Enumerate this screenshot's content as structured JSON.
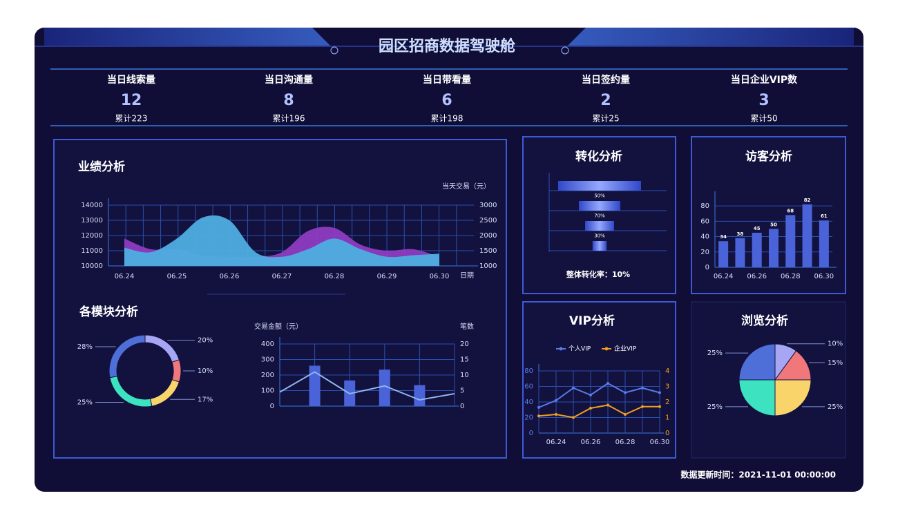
{
  "header": {
    "title": "园区招商数据驾驶舱"
  },
  "kpis": [
    {
      "label": "当日线索量",
      "value": 12,
      "total": "累计223"
    },
    {
      "label": "当日沟通量",
      "value": 8,
      "total": "累计196"
    },
    {
      "label": "当日带看量",
      "value": 6,
      "total": "累计198"
    },
    {
      "label": "当日签约量",
      "value": 2,
      "total": "累计25"
    },
    {
      "label": "当日企业VIP数",
      "value": 3,
      "total": "累计50"
    }
  ],
  "update_time": "数据更新时间：2021-11-01  00:00:00",
  "chart_data": [
    {
      "type": "area",
      "title": "业绩分析",
      "y2_label": "当天交易（元）",
      "x_label": "日期",
      "categories": [
        "06.24",
        null,
        "06.25",
        null,
        "06.26",
        null,
        "06.27",
        null,
        "06.28",
        null,
        "06.29",
        null,
        "06.30"
      ],
      "ylim": [
        10000,
        14000
      ],
      "yticks": [
        10000,
        11000,
        12000,
        13000,
        14000
      ],
      "y2lim": [
        1000,
        3000
      ],
      "y2ticks": [
        1000,
        1500,
        2000,
        2500,
        3000
      ],
      "grid": true,
      "series": [
        {
          "color": "#8e3cc0",
          "axis": "y2",
          "values": [
            1900,
            1550,
            1550,
            1350,
            1300,
            1300,
            1450,
            2150,
            2250,
            1700,
            1500,
            1550,
            1300
          ]
        },
        {
          "color": "#4eaee0",
          "values": [
            11200,
            10900,
            11800,
            13200,
            13000,
            10900,
            10600,
            11100,
            11800,
            11100,
            10600,
            10700,
            10800
          ]
        }
      ]
    },
    {
      "type": "donut",
      "title": "各模块分析",
      "values": [
        20,
        10,
        17,
        25,
        28
      ],
      "value_labels": [
        "20%",
        "10%",
        "17%",
        "25%",
        "28%"
      ],
      "colors": [
        "#a7a6f5",
        "#f0777a",
        "#f9d46b",
        "#3de3c0",
        "#4f6fd8"
      ]
    },
    {
      "type": "combo",
      "y_label": "交易金额（元）",
      "y2_label": "笔数",
      "categories": [
        null,
        null,
        null,
        null,
        null,
        null
      ],
      "ylim": [
        0,
        400
      ],
      "yticks": [
        0,
        100,
        200,
        300,
        400
      ],
      "y2lim": [
        0,
        20
      ],
      "y2ticks": [
        0,
        5,
        10,
        15,
        20
      ],
      "grid": true,
      "series": [
        {
          "type": "bar",
          "color": "#4a63d8",
          "values": [
            null,
            260,
            165,
            235,
            135,
            null
          ]
        },
        {
          "type": "line",
          "color": "#8fb6f0",
          "axis": "y2",
          "values": [
            4.5,
            11,
            4,
            6.5,
            2,
            4
          ]
        }
      ]
    },
    {
      "type": "funnel",
      "title": "转化分析",
      "stages": [
        100,
        50,
        35,
        17
      ],
      "values": [
        50,
        70,
        30
      ],
      "value_labels": [
        "50%",
        "70%",
        "30%"
      ],
      "note": "整体转化率：10%"
    },
    {
      "type": "bar",
      "title": "访客分析",
      "categories": [
        "06.24",
        null,
        "06.26",
        null,
        "06.28",
        null,
        "06.30"
      ],
      "values": [
        34,
        38,
        45,
        50,
        68,
        82,
        61
      ],
      "color": "#4a63d8",
      "ylim": [
        0,
        90
      ],
      "yticks": [
        0,
        20,
        40,
        60,
        80
      ],
      "grid": true
    },
    {
      "type": "line",
      "title": "VIP分析",
      "legend": "top",
      "categories": [
        null,
        "06.24",
        null,
        "06.26",
        null,
        "06.28",
        null,
        "06.30"
      ],
      "ylim": [
        0,
        80
      ],
      "yticks": [
        0,
        20,
        40,
        60,
        80
      ],
      "y2lim": [
        0,
        4
      ],
      "y2ticks": [
        0,
        1,
        2,
        3,
        4
      ],
      "grid": true,
      "series": [
        {
          "name": "个人VIP",
          "color": "#5b7be8",
          "values": [
            33,
            42,
            58,
            49,
            64,
            52,
            58,
            52
          ]
        },
        {
          "name": "企业VIP",
          "color": "#f0a020",
          "axis": "y2",
          "values": [
            1.1,
            1.2,
            1.0,
            1.6,
            1.8,
            1.2,
            1.7,
            1.7
          ]
        }
      ]
    },
    {
      "type": "pie",
      "title": "浏览分析",
      "values": [
        10,
        15,
        25,
        25,
        25
      ],
      "value_labels": [
        "10%",
        "15%",
        "25%",
        "25%",
        "25%"
      ],
      "colors": [
        "#a7a6f5",
        "#f0777a",
        "#f9d46b",
        "#3de3c0",
        "#4f6fd8"
      ]
    }
  ]
}
